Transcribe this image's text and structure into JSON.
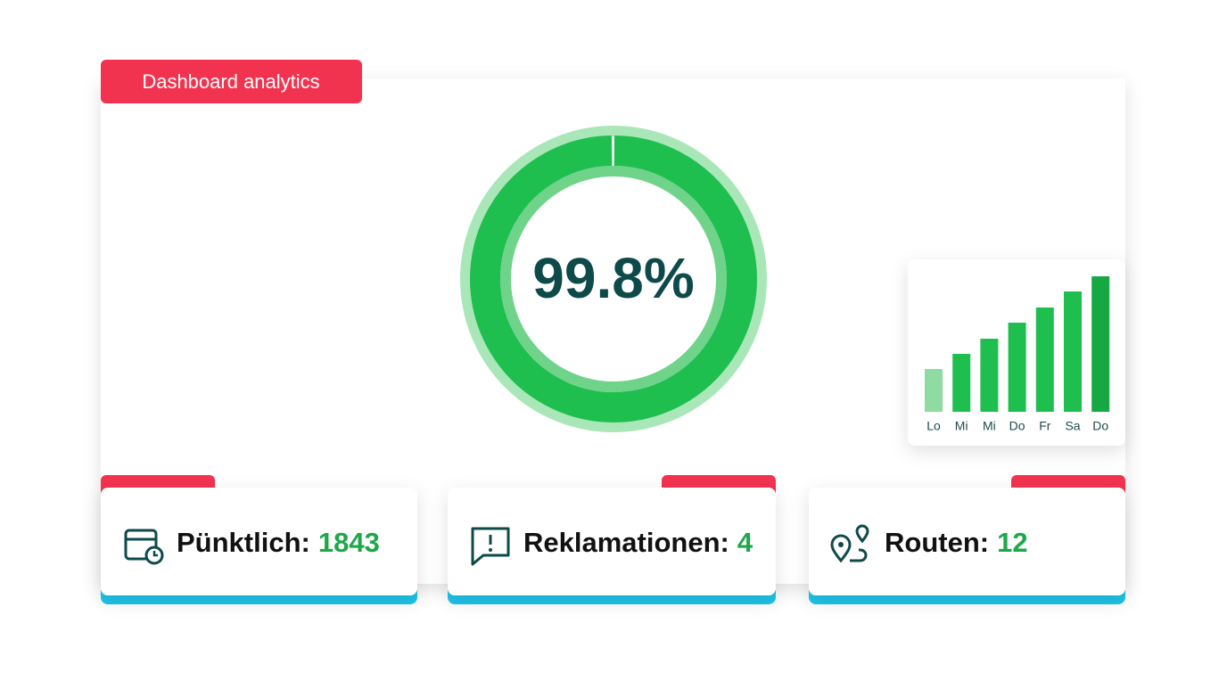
{
  "header": {
    "title": "Dashboard analytics"
  },
  "chart_data": [
    {
      "type": "donut",
      "values": [
        99.8
      ],
      "value_labels": [
        "99.8%"
      ],
      "ylim": [
        0,
        100
      ],
      "color": "#1fbf4f"
    },
    {
      "type": "bar",
      "categories": [
        "Lo",
        "Mi",
        "Mi",
        "Do",
        "Fr",
        "Sa",
        "Do"
      ],
      "values": [
        48,
        65,
        82,
        100,
        117,
        135,
        152
      ],
      "ylim": [
        0,
        160
      ],
      "colors": [
        "#8fdca3",
        "#1fbf4f",
        "#1fbf4f",
        "#1fbf4f",
        "#1fbf4f",
        "#1fbf4f",
        "#16a843"
      ]
    }
  ],
  "cards": [
    {
      "label": "Pünktlich:",
      "value": 1843
    },
    {
      "label": "Reklamationen:",
      "value": 4
    },
    {
      "label": "Routen:",
      "value": 12
    }
  ]
}
